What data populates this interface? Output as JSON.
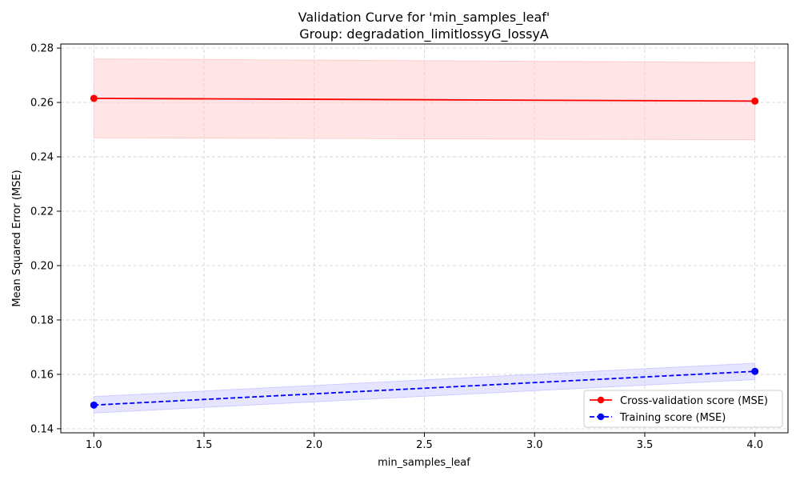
{
  "chart_data": {
    "type": "line",
    "title": "Validation Curve for 'min_samples_leaf'",
    "subtitle": "Group: degradation_limitlossyG_lossyA",
    "xlabel": "min_samples_leaf",
    "ylabel": "Mean Squared Error (MSE)",
    "xlim": [
      0.85,
      4.15
    ],
    "ylim": [
      0.1385,
      0.2815
    ],
    "x_ticks": [
      1.0,
      1.5,
      2.0,
      2.5,
      3.0,
      3.5,
      4.0
    ],
    "x_tick_labels": [
      "1.0",
      "1.5",
      "2.0",
      "2.5",
      "3.0",
      "3.5",
      "4.0"
    ],
    "y_ticks": [
      0.14,
      0.16,
      0.18,
      0.2,
      0.22,
      0.24,
      0.26,
      0.28
    ],
    "y_tick_labels": [
      "0.14",
      "0.16",
      "0.18",
      "0.20",
      "0.22",
      "0.24",
      "0.26",
      "0.28"
    ],
    "grid": true,
    "legend_position": "lower-right",
    "x": [
      1,
      4
    ],
    "series": [
      {
        "name": "Cross-validation score (MSE)",
        "values": [
          0.2615,
          0.2605
        ],
        "band_lower": [
          0.247,
          0.2463
        ],
        "band_upper": [
          0.276,
          0.2747
        ],
        "color": "#ff0000",
        "band_color": "#ffcccc",
        "line_style": "solid",
        "marker": "circle"
      },
      {
        "name": "Training score (MSE)",
        "values": [
          0.1487,
          0.1611
        ],
        "band_lower": [
          0.1458,
          0.1581
        ],
        "band_upper": [
          0.1518,
          0.1641
        ],
        "color": "#0000ff",
        "band_color": "#ccccff",
        "line_style": "dashed",
        "marker": "circle"
      }
    ]
  }
}
